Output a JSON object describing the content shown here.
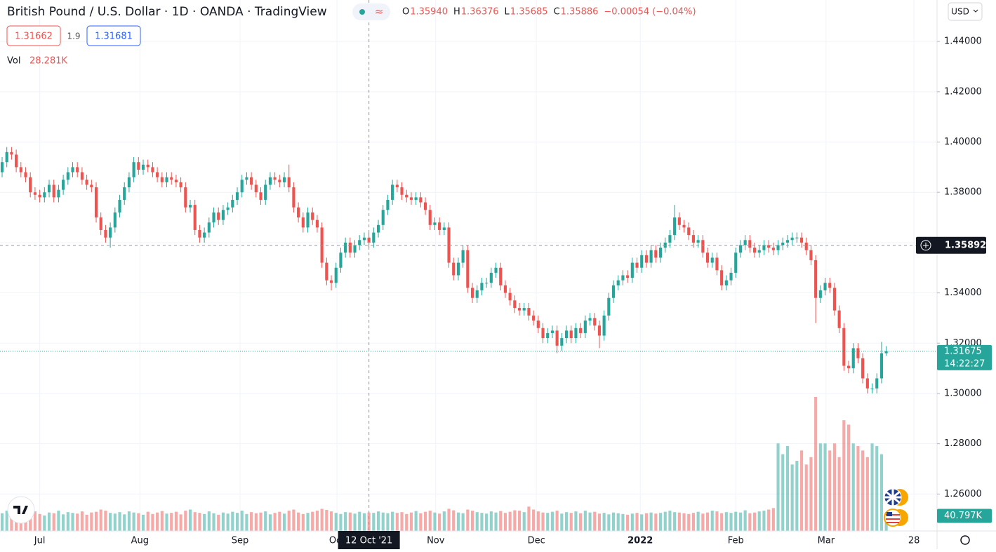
{
  "chart_data": {
    "type": "candlestick",
    "title": "British Pound / U.S. Dollar · 1D · OANDA · TradingView",
    "legend": [
      {
        "key": "O",
        "value": "1.35940"
      },
      {
        "key": "H",
        "value": "1.36376"
      },
      {
        "key": "L",
        "value": "1.35685"
      },
      {
        "key": "C",
        "value": "1.35886"
      }
    ],
    "change": "−0.00054 (−0.04%)",
    "bid": "1.31662",
    "spread": "1.9",
    "ask": "1.31681",
    "volume_title": "Vol",
    "volume_value": "28.281K",
    "currency": "USD",
    "up_color": "#26a69a",
    "down_color": "#ef5350",
    "grid": true,
    "xlim": [
      -0.45,
      198.8
    ],
    "ylim": [
      1.2453,
      1.4565
    ],
    "volume_lim": [
      0,
      380
    ],
    "yticks": [
      {
        "value": 1.26,
        "label": "1.26000"
      },
      {
        "value": 1.28,
        "label": "1.28000"
      },
      {
        "value": 1.3,
        "label": "1.30000"
      },
      {
        "value": 1.32,
        "label": "1.32000"
      },
      {
        "value": 1.34,
        "label": "1.34000"
      },
      {
        "value": 1.36,
        "label": "1.36000"
      },
      {
        "value": 1.38,
        "label": "1.38000"
      },
      {
        "value": 1.4,
        "label": "1.40000"
      },
      {
        "value": 1.42,
        "label": "1.42000"
      },
      {
        "value": 1.44,
        "label": "1.44000"
      }
    ],
    "xticks": [
      {
        "value": 8,
        "label": "Jul"
      },
      {
        "value": 29.3,
        "label": "Aug"
      },
      {
        "value": 50.6,
        "label": "Sep"
      },
      {
        "value": 71.2,
        "label": "Oct"
      },
      {
        "value": 92.2,
        "label": "Nov"
      },
      {
        "value": 113.6,
        "label": "Dec"
      },
      {
        "value": 135.7,
        "label": "2022"
      },
      {
        "value": 156,
        "label": "Feb"
      },
      {
        "value": 175.2,
        "label": "Mar"
      },
      {
        "value": 193.9,
        "label": "28"
      }
    ],
    "crosshair_x": {
      "value": 78,
      "label": "12 Oct '21"
    },
    "crosshair_price": 1.35892,
    "last_price": 1.31675,
    "countdown": "14:22:27",
    "last_volume_label": "40.797K",
    "open": [
      1.388,
      1.392,
      1.396,
      1.395,
      1.39,
      1.388,
      1.386,
      1.38,
      1.379,
      1.378,
      1.38,
      1.383,
      1.378,
      1.381,
      1.385,
      1.388,
      1.39,
      1.388,
      1.385,
      1.383,
      1.382,
      1.37,
      1.365,
      1.362,
      1.366,
      1.372,
      1.377,
      1.382,
      1.386,
      1.392,
      1.389,
      1.391,
      1.39,
      1.388,
      1.386,
      1.384,
      1.386,
      1.385,
      1.384,
      1.382,
      1.374,
      1.375,
      1.365,
      1.362,
      1.364,
      1.368,
      1.372,
      1.369,
      1.373,
      1.374,
      1.377,
      1.38,
      1.385,
      1.386,
      1.383,
      1.38,
      1.377,
      1.383,
      1.386,
      1.385,
      1.384,
      1.386,
      1.382,
      1.374,
      1.37,
      1.366,
      1.372,
      1.369,
      1.366,
      1.352,
      1.345,
      1.344,
      1.35,
      1.356,
      1.36,
      1.356,
      1.359,
      1.361,
      1.362,
      1.36,
      1.364,
      1.367,
      1.373,
      1.377,
      1.383,
      1.382,
      1.379,
      1.378,
      1.377,
      1.378,
      1.376,
      1.373,
      1.367,
      1.368,
      1.365,
      1.366,
      1.352,
      1.347,
      1.352,
      1.357,
      1.342,
      1.338,
      1.341,
      1.344,
      1.344,
      1.348,
      1.35,
      1.343,
      1.34,
      1.337,
      1.334,
      1.333,
      1.334,
      1.331,
      1.329,
      1.326,
      1.322,
      1.324,
      1.325,
      1.319,
      1.322,
      1.325,
      1.322,
      1.326,
      1.324,
      1.329,
      1.33,
      1.327,
      1.323,
      1.331,
      1.338,
      1.343,
      1.345,
      1.347,
      1.346,
      1.352,
      1.35,
      1.355,
      1.352,
      1.357,
      1.354,
      1.358,
      1.36,
      1.363,
      1.37,
      1.367,
      1.366,
      1.363,
      1.36,
      1.361,
      1.356,
      1.352,
      1.354,
      1.349,
      1.343,
      1.345,
      1.348,
      1.356,
      1.359,
      1.361,
      1.358,
      1.356,
      1.357,
      1.359,
      1.358,
      1.357,
      1.359,
      1.36,
      1.361,
      1.362,
      1.362,
      1.36,
      1.357,
      1.353,
      1.338,
      1.341,
      1.344,
      1.342,
      1.333,
      1.326,
      1.311,
      1.31,
      1.318,
      1.314,
      1.306,
      1.302,
      1.302,
      1.306,
      1.316
    ],
    "high": [
      1.394,
      1.398,
      1.398,
      1.397,
      1.392,
      1.39,
      1.388,
      1.382,
      1.381,
      1.382,
      1.385,
      1.385,
      1.383,
      1.387,
      1.39,
      1.392,
      1.392,
      1.39,
      1.387,
      1.385,
      1.384,
      1.372,
      1.367,
      1.368,
      1.374,
      1.379,
      1.384,
      1.388,
      1.394,
      1.394,
      1.393,
      1.393,
      1.392,
      1.39,
      1.388,
      1.388,
      1.388,
      1.387,
      1.386,
      1.384,
      1.377,
      1.377,
      1.367,
      1.366,
      1.37,
      1.374,
      1.374,
      1.375,
      1.376,
      1.379,
      1.382,
      1.387,
      1.388,
      1.388,
      1.385,
      1.382,
      1.385,
      1.388,
      1.388,
      1.387,
      1.388,
      1.391,
      1.384,
      1.376,
      1.372,
      1.374,
      1.374,
      1.371,
      1.368,
      1.354,
      1.347,
      1.352,
      1.358,
      1.362,
      1.362,
      1.361,
      1.363,
      1.364,
      1.364,
      1.366,
      1.369,
      1.375,
      1.379,
      1.385,
      1.385,
      1.384,
      1.381,
      1.38,
      1.38,
      1.38,
      1.378,
      1.375,
      1.37,
      1.37,
      1.368,
      1.368,
      1.354,
      1.354,
      1.359,
      1.359,
      1.344,
      1.343,
      1.346,
      1.346,
      1.35,
      1.352,
      1.352,
      1.345,
      1.342,
      1.339,
      1.336,
      1.336,
      1.336,
      1.333,
      1.331,
      1.328,
      1.326,
      1.327,
      1.327,
      1.324,
      1.327,
      1.327,
      1.328,
      1.328,
      1.331,
      1.332,
      1.332,
      1.329,
      1.333,
      1.34,
      1.345,
      1.347,
      1.349,
      1.349,
      1.354,
      1.354,
      1.357,
      1.357,
      1.359,
      1.359,
      1.36,
      1.362,
      1.365,
      1.375,
      1.372,
      1.369,
      1.368,
      1.365,
      1.363,
      1.363,
      1.358,
      1.356,
      1.356,
      1.351,
      1.347,
      1.35,
      1.358,
      1.361,
      1.363,
      1.363,
      1.36,
      1.359,
      1.361,
      1.361,
      1.36,
      1.361,
      1.362,
      1.363,
      1.364,
      1.364,
      1.364,
      1.362,
      1.359,
      1.355,
      1.343,
      1.346,
      1.346,
      1.344,
      1.335,
      1.328,
      1.313,
      1.32,
      1.32,
      1.316,
      1.308,
      1.304,
      1.308,
      1.3205,
      1.3188
    ],
    "low": [
      1.386,
      1.39,
      1.393,
      1.388,
      1.386,
      1.384,
      1.378,
      1.377,
      1.376,
      1.376,
      1.378,
      1.376,
      1.376,
      1.379,
      1.383,
      1.386,
      1.386,
      1.383,
      1.381,
      1.38,
      1.368,
      1.363,
      1.36,
      1.358,
      1.364,
      1.37,
      1.375,
      1.38,
      1.384,
      1.387,
      1.387,
      1.388,
      1.386,
      1.384,
      1.382,
      1.382,
      1.383,
      1.382,
      1.38,
      1.372,
      1.372,
      1.363,
      1.36,
      1.36,
      1.362,
      1.366,
      1.367,
      1.367,
      1.371,
      1.372,
      1.375,
      1.378,
      1.383,
      1.381,
      1.378,
      1.375,
      1.375,
      1.381,
      1.383,
      1.382,
      1.382,
      1.38,
      1.372,
      1.368,
      1.364,
      1.364,
      1.367,
      1.364,
      1.35,
      1.343,
      1.341,
      1.342,
      1.348,
      1.354,
      1.354,
      1.354,
      1.357,
      1.359,
      1.358,
      1.358,
      1.362,
      1.365,
      1.371,
      1.375,
      1.38,
      1.377,
      1.376,
      1.375,
      1.375,
      1.374,
      1.371,
      1.365,
      1.365,
      1.363,
      1.363,
      1.35,
      1.345,
      1.345,
      1.35,
      1.34,
      1.336,
      1.336,
      1.339,
      1.342,
      1.342,
      1.346,
      1.341,
      1.338,
      1.335,
      1.332,
      1.331,
      1.331,
      1.329,
      1.327,
      1.324,
      1.32,
      1.32,
      1.322,
      1.316,
      1.317,
      1.32,
      1.32,
      1.32,
      1.322,
      1.322,
      1.327,
      1.325,
      1.318,
      1.321,
      1.329,
      1.336,
      1.341,
      1.343,
      1.344,
      1.344,
      1.348,
      1.348,
      1.35,
      1.35,
      1.352,
      1.352,
      1.356,
      1.358,
      1.361,
      1.365,
      1.364,
      1.361,
      1.358,
      1.358,
      1.354,
      1.35,
      1.35,
      1.347,
      1.341,
      1.341,
      1.343,
      1.346,
      1.354,
      1.357,
      1.356,
      1.354,
      1.354,
      1.355,
      1.356,
      1.355,
      1.355,
      1.357,
      1.358,
      1.359,
      1.36,
      1.358,
      1.355,
      1.351,
      1.328,
      1.336,
      1.339,
      1.34,
      1.331,
      1.324,
      1.309,
      1.308,
      1.308,
      1.312,
      1.304,
      1.3,
      1.3,
      1.3,
      1.304,
      1.315
    ],
    "close": [
      1.392,
      1.396,
      1.395,
      1.39,
      1.388,
      1.386,
      1.38,
      1.379,
      1.378,
      1.38,
      1.383,
      1.378,
      1.381,
      1.385,
      1.388,
      1.39,
      1.388,
      1.385,
      1.383,
      1.382,
      1.37,
      1.365,
      1.362,
      1.366,
      1.372,
      1.377,
      1.382,
      1.386,
      1.392,
      1.389,
      1.391,
      1.39,
      1.388,
      1.386,
      1.384,
      1.386,
      1.385,
      1.384,
      1.382,
      1.374,
      1.375,
      1.365,
      1.362,
      1.364,
      1.368,
      1.372,
      1.369,
      1.373,
      1.374,
      1.377,
      1.38,
      1.385,
      1.386,
      1.383,
      1.38,
      1.377,
      1.383,
      1.386,
      1.385,
      1.384,
      1.386,
      1.382,
      1.374,
      1.37,
      1.366,
      1.372,
      1.369,
      1.366,
      1.352,
      1.345,
      1.344,
      1.35,
      1.356,
      1.36,
      1.356,
      1.359,
      1.361,
      1.362,
      1.36,
      1.364,
      1.367,
      1.373,
      1.377,
      1.383,
      1.382,
      1.379,
      1.378,
      1.377,
      1.378,
      1.376,
      1.373,
      1.367,
      1.368,
      1.365,
      1.366,
      1.352,
      1.347,
      1.352,
      1.357,
      1.342,
      1.338,
      1.341,
      1.344,
      1.344,
      1.348,
      1.35,
      1.343,
      1.34,
      1.337,
      1.334,
      1.333,
      1.334,
      1.331,
      1.329,
      1.326,
      1.322,
      1.324,
      1.325,
      1.319,
      1.322,
      1.325,
      1.322,
      1.326,
      1.324,
      1.329,
      1.33,
      1.327,
      1.323,
      1.331,
      1.338,
      1.343,
      1.345,
      1.347,
      1.346,
      1.352,
      1.35,
      1.355,
      1.352,
      1.357,
      1.354,
      1.358,
      1.36,
      1.363,
      1.37,
      1.367,
      1.366,
      1.363,
      1.36,
      1.361,
      1.356,
      1.352,
      1.354,
      1.349,
      1.343,
      1.345,
      1.348,
      1.356,
      1.359,
      1.361,
      1.358,
      1.356,
      1.357,
      1.359,
      1.358,
      1.357,
      1.359,
      1.36,
      1.361,
      1.362,
      1.362,
      1.36,
      1.357,
      1.353,
      1.338,
      1.341,
      1.344,
      1.342,
      1.333,
      1.326,
      1.311,
      1.31,
      1.318,
      1.314,
      1.306,
      1.302,
      1.302,
      1.306,
      1.316,
      1.3168
    ],
    "volume": [
      48,
      55,
      50,
      44,
      52,
      47,
      50,
      53,
      46,
      42,
      50,
      48,
      55,
      45,
      51,
      49,
      47,
      53,
      44,
      50,
      52,
      58,
      55,
      49,
      47,
      51,
      45,
      53,
      50,
      48,
      44,
      52,
      46,
      50,
      54,
      47,
      49,
      52,
      45,
      55,
      58,
      51,
      49,
      46,
      53,
      48,
      44,
      50,
      47,
      52,
      49,
      55,
      46,
      51,
      48,
      50,
      53,
      45,
      49,
      52,
      47,
      55,
      58,
      50,
      46,
      49,
      52,
      55,
      60,
      57,
      53,
      49,
      46,
      51,
      50,
      47,
      52,
      48,
      50,
      49,
      53,
      50,
      48,
      52,
      49,
      51,
      46,
      50,
      54,
      48,
      52,
      55,
      50,
      47,
      53,
      60,
      56,
      50,
      48,
      58,
      55,
      51,
      49,
      47,
      53,
      50,
      54,
      49,
      52,
      56,
      55,
      51,
      66,
      58,
      53,
      50,
      49,
      52,
      55,
      47,
      51,
      49,
      53,
      48,
      55,
      50,
      52,
      47,
      49,
      45,
      50,
      48,
      46,
      44,
      47,
      49,
      45,
      48,
      50,
      47,
      49,
      52,
      55,
      51,
      50,
      48,
      46,
      49,
      52,
      47,
      50,
      55,
      53,
      48,
      51,
      49,
      52,
      50,
      56,
      48,
      50,
      53,
      55,
      58,
      62,
      237,
      208,
      230,
      180,
      190,
      218,
      180,
      200,
      363,
      237,
      237,
      218,
      237,
      200,
      300,
      288,
      237,
      230,
      218,
      200,
      237,
      230,
      208,
      40.797
    ]
  }
}
